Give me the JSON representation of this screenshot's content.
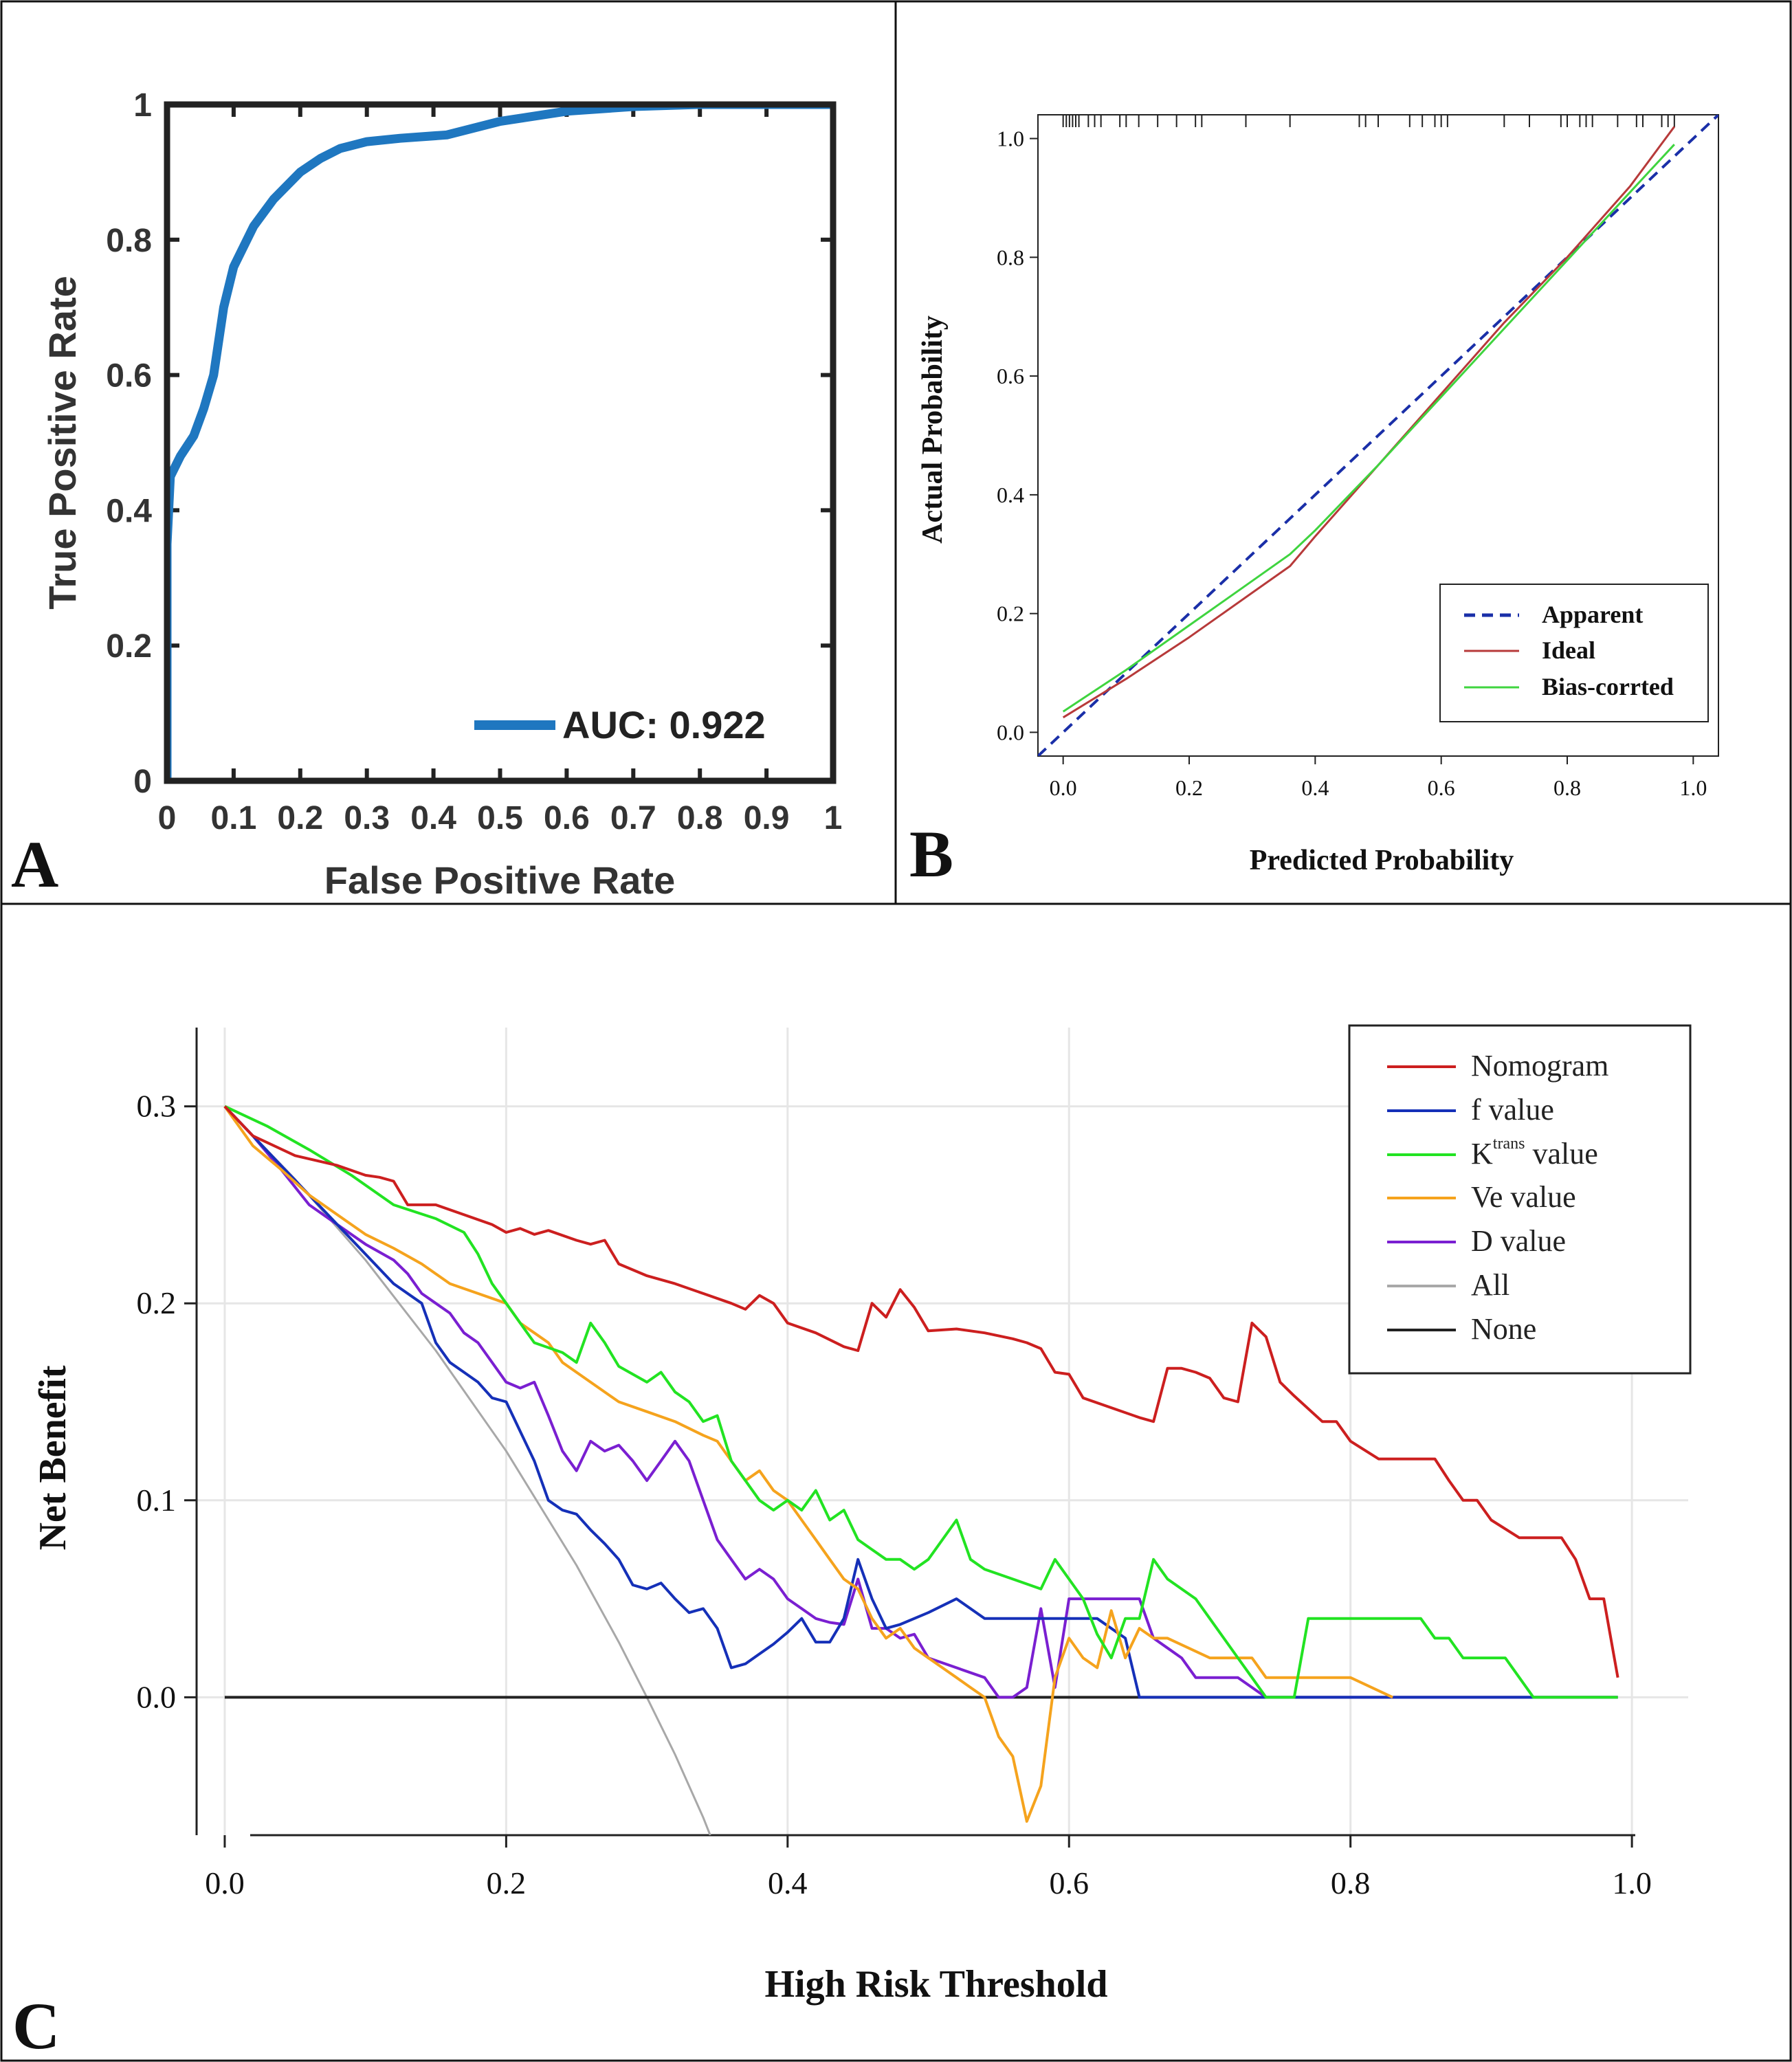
{
  "panels": {
    "a": "A",
    "b": "B",
    "c": "C"
  },
  "chart_data": [
    {
      "id": "A",
      "type": "line",
      "xlabel": "False Positive Rate",
      "ylabel": "True Positive Rate",
      "xlim": [
        0,
        1
      ],
      "ylim": [
        0,
        1
      ],
      "xticks": [
        "0",
        "0.1",
        "0.2",
        "0.3",
        "0.4",
        "0.5",
        "0.6",
        "0.7",
        "0.8",
        "0.9",
        "1"
      ],
      "yticks": [
        "0",
        "0.2",
        "0.4",
        "0.6",
        "0.8",
        "1"
      ],
      "legend": {
        "label": "AUC: 0.922",
        "position": "bottom-right"
      },
      "series": [
        {
          "name": "AUC: 0.922",
          "color": "#1f77c0",
          "x": [
            0,
            0,
            0.005,
            0.02,
            0.04,
            0.055,
            0.07,
            0.085,
            0.1,
            0.13,
            0.16,
            0.2,
            0.23,
            0.26,
            0.3,
            0.35,
            0.42,
            0.5,
            0.6,
            0.7,
            0.8,
            1
          ],
          "y": [
            0,
            0.35,
            0.45,
            0.48,
            0.51,
            0.55,
            0.6,
            0.7,
            0.76,
            0.82,
            0.86,
            0.9,
            0.92,
            0.935,
            0.945,
            0.95,
            0.955,
            0.975,
            0.99,
            0.997,
            1,
            1
          ]
        }
      ]
    },
    {
      "id": "B",
      "type": "line",
      "xlabel": "Predicted Probability",
      "ylabel": "Actual Probability",
      "xlim": [
        -0.04,
        1.04
      ],
      "ylim": [
        -0.04,
        1.04
      ],
      "xticks": [
        "0.0",
        "0.2",
        "0.4",
        "0.6",
        "0.8",
        "1.0"
      ],
      "yticks": [
        "0.0",
        "0.2",
        "0.4",
        "0.6",
        "0.8",
        "1.0"
      ],
      "legend": {
        "position": "bottom-right"
      },
      "series": [
        {
          "name": "Apparent",
          "color": "#1a2fa8",
          "style": "dashed",
          "x": [
            -0.04,
            1.04
          ],
          "y": [
            -0.04,
            1.04
          ]
        },
        {
          "name": "Ideal",
          "color": "#b73a3a",
          "style": "solid",
          "x": [
            0,
            0.1,
            0.2,
            0.3,
            0.36,
            0.4,
            0.5,
            0.6,
            0.7,
            0.8,
            0.9,
            0.97
          ],
          "y": [
            0.025,
            0.09,
            0.16,
            0.235,
            0.28,
            0.33,
            0.45,
            0.57,
            0.69,
            0.8,
            0.92,
            1.02
          ]
        },
        {
          "name": "Bias-corrted",
          "color": "#3fd43f",
          "style": "solid",
          "x": [
            0,
            0.1,
            0.2,
            0.3,
            0.36,
            0.4,
            0.5,
            0.6,
            0.7,
            0.8,
            0.9,
            0.97
          ],
          "y": [
            0.035,
            0.105,
            0.18,
            0.255,
            0.3,
            0.34,
            0.45,
            0.565,
            0.68,
            0.795,
            0.91,
            0.99
          ]
        }
      ],
      "rug": [
        0,
        0.005,
        0.01,
        0.015,
        0.02,
        0.025,
        0.04,
        0.05,
        0.06,
        0.09,
        0.1,
        0.12,
        0.15,
        0.18,
        0.21,
        0.22,
        0.29,
        0.36,
        0.47,
        0.48,
        0.5,
        0.55,
        0.57,
        0.59,
        0.6,
        0.61,
        0.7,
        0.74,
        0.79,
        0.8,
        0.82,
        0.83,
        0.84,
        0.88,
        0.91,
        0.92,
        0.95,
        0.96,
        0.97
      ]
    },
    {
      "id": "C",
      "type": "line",
      "xlabel": "High Risk Threshold",
      "ylabel": "Net Benefit",
      "xlim": [
        -0.02,
        1.04
      ],
      "ylim": [
        -0.07,
        0.34
      ],
      "xticks": [
        "0.0",
        "0.2",
        "0.4",
        "0.6",
        "0.8",
        "1.0"
      ],
      "yticks": [
        "0.0",
        "0.1",
        "0.2",
        "0.3"
      ],
      "legend": {
        "position": "top-right"
      },
      "series": [
        {
          "name": "Nomogram",
          "color": "#cc1f1f",
          "x": [
            0,
            0.02,
            0.05,
            0.08,
            0.1,
            0.11,
            0.12,
            0.13,
            0.15,
            0.17,
            0.19,
            0.2,
            0.21,
            0.22,
            0.23,
            0.25,
            0.26,
            0.27,
            0.28,
            0.3,
            0.32,
            0.34,
            0.36,
            0.37,
            0.38,
            0.39,
            0.4,
            0.42,
            0.44,
            0.45,
            0.46,
            0.47,
            0.48,
            0.49,
            0.5,
            0.52,
            0.54,
            0.56,
            0.57,
            0.58,
            0.59,
            0.6,
            0.61,
            0.63,
            0.65,
            0.66,
            0.67,
            0.68,
            0.69,
            0.7,
            0.71,
            0.72,
            0.73,
            0.74,
            0.75,
            0.76,
            0.78,
            0.79,
            0.8,
            0.82,
            0.84,
            0.85,
            0.86,
            0.87,
            0.88,
            0.89,
            0.9,
            0.92,
            0.93,
            0.94,
            0.95,
            0.96,
            0.97,
            0.98,
            0.99
          ],
          "y": [
            0.3,
            0.285,
            0.275,
            0.27,
            0.265,
            0.264,
            0.262,
            0.25,
            0.25,
            0.245,
            0.24,
            0.236,
            0.238,
            0.235,
            0.237,
            0.232,
            0.23,
            0.232,
            0.22,
            0.214,
            0.21,
            0.205,
            0.2,
            0.197,
            0.204,
            0.2,
            0.19,
            0.185,
            0.178,
            0.176,
            0.2,
            0.193,
            0.207,
            0.198,
            0.186,
            0.187,
            0.185,
            0.182,
            0.18,
            0.177,
            0.165,
            0.164,
            0.152,
            0.147,
            0.142,
            0.14,
            0.167,
            0.167,
            0.165,
            0.162,
            0.152,
            0.15,
            0.19,
            0.183,
            0.16,
            0.153,
            0.14,
            0.14,
            0.13,
            0.121,
            0.121,
            0.121,
            0.121,
            0.11,
            0.1,
            0.1,
            0.09,
            0.081,
            0.081,
            0.081,
            0.081,
            0.07,
            0.05,
            0.05,
            0.01
          ]
        },
        {
          "name": "f value",
          "color": "#1530b8",
          "x": [
            0,
            0.02,
            0.04,
            0.06,
            0.08,
            0.1,
            0.12,
            0.14,
            0.15,
            0.16,
            0.17,
            0.18,
            0.19,
            0.2,
            0.21,
            0.22,
            0.23,
            0.24,
            0.25,
            0.26,
            0.27,
            0.28,
            0.29,
            0.3,
            0.31,
            0.32,
            0.33,
            0.34,
            0.35,
            0.36,
            0.37,
            0.38,
            0.39,
            0.4,
            0.41,
            0.42,
            0.43,
            0.44,
            0.45,
            0.46,
            0.47,
            0.48,
            0.5,
            0.52,
            0.54,
            0.56,
            0.58,
            0.6,
            0.62,
            0.64,
            0.65,
            0.66,
            0.7,
            0.8,
            0.9,
            0.99
          ],
          "y": [
            0.3,
            0.285,
            0.27,
            0.255,
            0.24,
            0.225,
            0.21,
            0.2,
            0.18,
            0.17,
            0.165,
            0.16,
            0.152,
            0.15,
            0.135,
            0.12,
            0.1,
            0.095,
            0.093,
            0.085,
            0.078,
            0.07,
            0.057,
            0.055,
            0.058,
            0.05,
            0.043,
            0.045,
            0.035,
            0.015,
            0.017,
            0.022,
            0.027,
            0.033,
            0.04,
            0.028,
            0.028,
            0.04,
            0.07,
            0.05,
            0.035,
            0.037,
            0.043,
            0.05,
            0.04,
            0.04,
            0.04,
            0.04,
            0.04,
            0.03,
            0,
            0,
            0,
            0,
            0,
            0
          ]
        },
        {
          "name": "K^trans value",
          "color": "#22e322",
          "x": [
            0,
            0.03,
            0.06,
            0.09,
            0.12,
            0.15,
            0.17,
            0.18,
            0.19,
            0.2,
            0.21,
            0.22,
            0.24,
            0.25,
            0.26,
            0.27,
            0.28,
            0.3,
            0.31,
            0.32,
            0.33,
            0.34,
            0.35,
            0.36,
            0.37,
            0.38,
            0.39,
            0.4,
            0.41,
            0.42,
            0.43,
            0.44,
            0.45,
            0.46,
            0.47,
            0.48,
            0.49,
            0.5,
            0.51,
            0.52,
            0.53,
            0.54,
            0.56,
            0.58,
            0.59,
            0.6,
            0.61,
            0.62,
            0.63,
            0.64,
            0.65,
            0.66,
            0.67,
            0.68,
            0.69,
            0.7,
            0.71,
            0.72,
            0.73,
            0.74,
            0.75,
            0.76,
            0.77,
            0.8,
            0.85,
            0.86,
            0.87,
            0.88,
            0.9,
            0.91,
            0.92,
            0.93,
            0.94,
            0.95,
            0.99
          ],
          "y": [
            0.3,
            0.29,
            0.278,
            0.265,
            0.25,
            0.243,
            0.236,
            0.225,
            0.21,
            0.2,
            0.19,
            0.18,
            0.175,
            0.17,
            0.19,
            0.18,
            0.168,
            0.16,
            0.165,
            0.155,
            0.15,
            0.14,
            0.143,
            0.12,
            0.11,
            0.1,
            0.095,
            0.1,
            0.095,
            0.105,
            0.09,
            0.095,
            0.08,
            0.075,
            0.07,
            0.07,
            0.065,
            0.07,
            0.08,
            0.09,
            0.07,
            0.065,
            0.06,
            0.055,
            0.07,
            0.06,
            0.05,
            0.032,
            0.02,
            0.04,
            0.04,
            0.07,
            0.06,
            0.055,
            0.05,
            0.04,
            0.03,
            0.02,
            0.01,
            0,
            0,
            0,
            0.04,
            0.04,
            0.04,
            0.03,
            0.03,
            0.02,
            0.02,
            0.02,
            0.01,
            0,
            0,
            0,
            0
          ]
        },
        {
          "name": "Ve value",
          "color": "#f5a31d",
          "x": [
            0,
            0.02,
            0.04,
            0.06,
            0.08,
            0.1,
            0.12,
            0.14,
            0.16,
            0.18,
            0.2,
            0.21,
            0.22,
            0.23,
            0.24,
            0.26,
            0.28,
            0.3,
            0.32,
            0.34,
            0.35,
            0.36,
            0.37,
            0.38,
            0.39,
            0.4,
            0.41,
            0.42,
            0.43,
            0.44,
            0.45,
            0.46,
            0.47,
            0.48,
            0.49,
            0.5,
            0.51,
            0.52,
            0.53,
            0.54,
            0.55,
            0.56,
            0.57,
            0.58,
            0.59,
            0.6,
            0.61,
            0.62,
            0.63,
            0.64,
            0.65,
            0.66,
            0.67,
            0.7,
            0.73,
            0.74,
            0.75,
            0.76,
            0.8,
            0.83
          ],
          "y": [
            0.3,
            0.28,
            0.268,
            0.255,
            0.245,
            0.235,
            0.228,
            0.22,
            0.21,
            0.205,
            0.2,
            0.19,
            0.185,
            0.18,
            0.17,
            0.16,
            0.15,
            0.145,
            0.14,
            0.133,
            0.13,
            0.12,
            0.11,
            0.115,
            0.105,
            0.1,
            0.09,
            0.08,
            0.07,
            0.06,
            0.055,
            0.04,
            0.03,
            0.035,
            0.025,
            0.02,
            0.015,
            0.01,
            0.005,
            0.0,
            -0.02,
            -0.03,
            -0.063,
            -0.045,
            0.01,
            0.03,
            0.02,
            0.015,
            0.044,
            0.02,
            0.035,
            0.03,
            0.03,
            0.02,
            0.02,
            0.01,
            0.01,
            0.01,
            0.01,
            0.0
          ]
        },
        {
          "name": "D value",
          "color": "#7a1fd1",
          "x": [
            0,
            0.02,
            0.04,
            0.06,
            0.08,
            0.1,
            0.12,
            0.13,
            0.14,
            0.15,
            0.16,
            0.17,
            0.18,
            0.19,
            0.2,
            0.21,
            0.22,
            0.23,
            0.24,
            0.25,
            0.26,
            0.27,
            0.28,
            0.29,
            0.3,
            0.31,
            0.32,
            0.33,
            0.34,
            0.35,
            0.36,
            0.37,
            0.38,
            0.39,
            0.4,
            0.41,
            0.42,
            0.43,
            0.44,
            0.45,
            0.46,
            0.47,
            0.48,
            0.49,
            0.5,
            0.52,
            0.54,
            0.55,
            0.56,
            0.57,
            0.58,
            0.59,
            0.6,
            0.61,
            0.62,
            0.63,
            0.64,
            0.65,
            0.66,
            0.67,
            0.68,
            0.69,
            0.7,
            0.72,
            0.74,
            0.75,
            0.8,
            0.9,
            0.99
          ],
          "y": [
            0.3,
            0.285,
            0.268,
            0.25,
            0.24,
            0.23,
            0.222,
            0.215,
            0.205,
            0.2,
            0.195,
            0.185,
            0.18,
            0.17,
            0.16,
            0.157,
            0.16,
            0.143,
            0.125,
            0.115,
            0.13,
            0.125,
            0.128,
            0.12,
            0.11,
            0.12,
            0.13,
            0.12,
            0.1,
            0.08,
            0.07,
            0.06,
            0.065,
            0.06,
            0.05,
            0.045,
            0.04,
            0.038,
            0.037,
            0.06,
            0.035,
            0.035,
            0.03,
            0.032,
            0.02,
            0.015,
            0.01,
            0.0,
            0.0,
            0.005,
            0.045,
            0.005,
            0.05,
            0.05,
            0.05,
            0.05,
            0.05,
            0.05,
            0.03,
            0.025,
            0.02,
            0.01,
            0.01,
            0.01,
            0.0,
            0.0,
            0.0,
            0.0,
            0.0
          ]
        },
        {
          "name": "All",
          "color": "#a8a8a8",
          "x": [
            0,
            0.05,
            0.1,
            0.15,
            0.2,
            0.25,
            0.28,
            0.3,
            0.32,
            0.34,
            0.345
          ],
          "y": [
            0.3,
            0.263,
            0.222,
            0.176,
            0.125,
            0.067,
            0.028,
            0.0,
            -0.029,
            -0.061,
            -0.07
          ]
        },
        {
          "name": "None",
          "color": "#222222",
          "x": [
            0,
            0.99
          ],
          "y": [
            0,
            0
          ]
        }
      ]
    }
  ],
  "legend_c": {
    "nomogram": "Nomogram",
    "f": "f value",
    "k_base": "K",
    "k_sup": "trans",
    "k_rest": " value",
    "ve": "Ve value",
    "d": "D value",
    "all": "All",
    "none": "None"
  }
}
